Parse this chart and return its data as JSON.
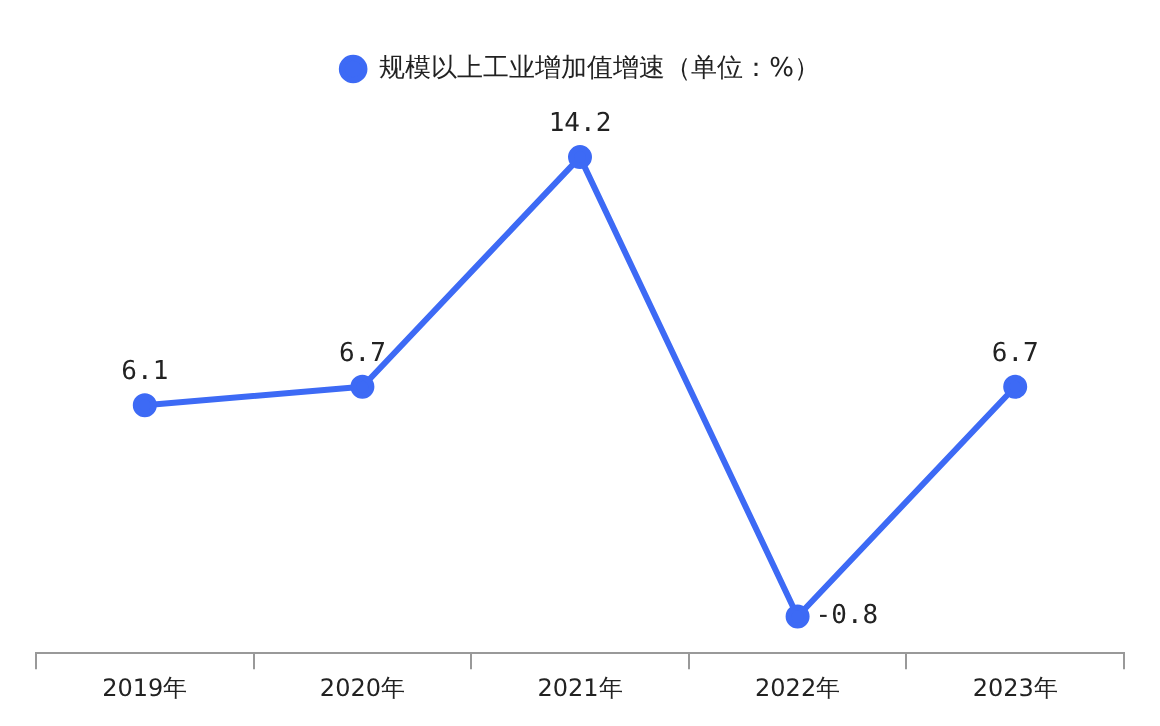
{
  "chart_data": {
    "type": "line",
    "categories": [
      "2019年",
      "2020年",
      "2021年",
      "2022年",
      "2023年"
    ],
    "series": [
      {
        "name": "规模以上工业增加值增速（单位：%）",
        "color": "#3d6af5",
        "values": [
          6.1,
          6.7,
          14.2,
          -0.8,
          6.7
        ]
      }
    ],
    "tick_labels": "x",
    "data_labels": true,
    "legend": "top",
    "marker": "circle",
    "line_style": "solid",
    "grid": false
  }
}
